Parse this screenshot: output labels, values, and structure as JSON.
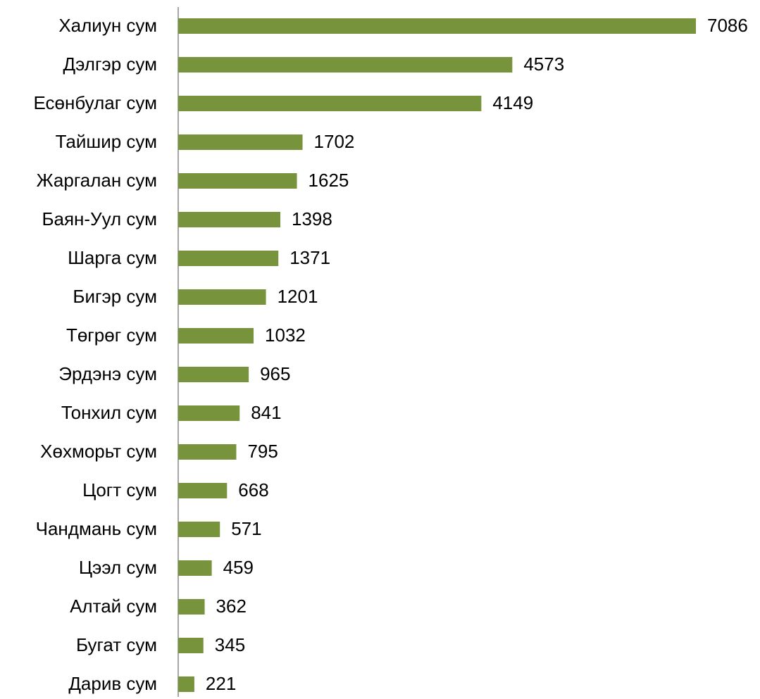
{
  "chart_data": {
    "type": "barh",
    "color": "#77933c",
    "categories": [
      "Халиун сум",
      "Дэлгэр сум",
      "Есөнбулаг сум",
      "Тайшир сум",
      "Жаргалан сум",
      "Баян-Уул сум",
      "Шарга сум",
      "Бигэр сум",
      "Төгрөг сум",
      "Эрдэнэ сум",
      "Тонхил сум",
      "Хөхморьт сум",
      "Цогт сум",
      "Чандмань сум",
      "Цээл сум",
      "Алтай сум",
      "Бугат сум",
      "Дарив сум"
    ],
    "values": [
      7086,
      4573,
      4149,
      1702,
      1625,
      1398,
      1371,
      1201,
      1032,
      965,
      841,
      795,
      668,
      571,
      459,
      362,
      345,
      221
    ]
  }
}
